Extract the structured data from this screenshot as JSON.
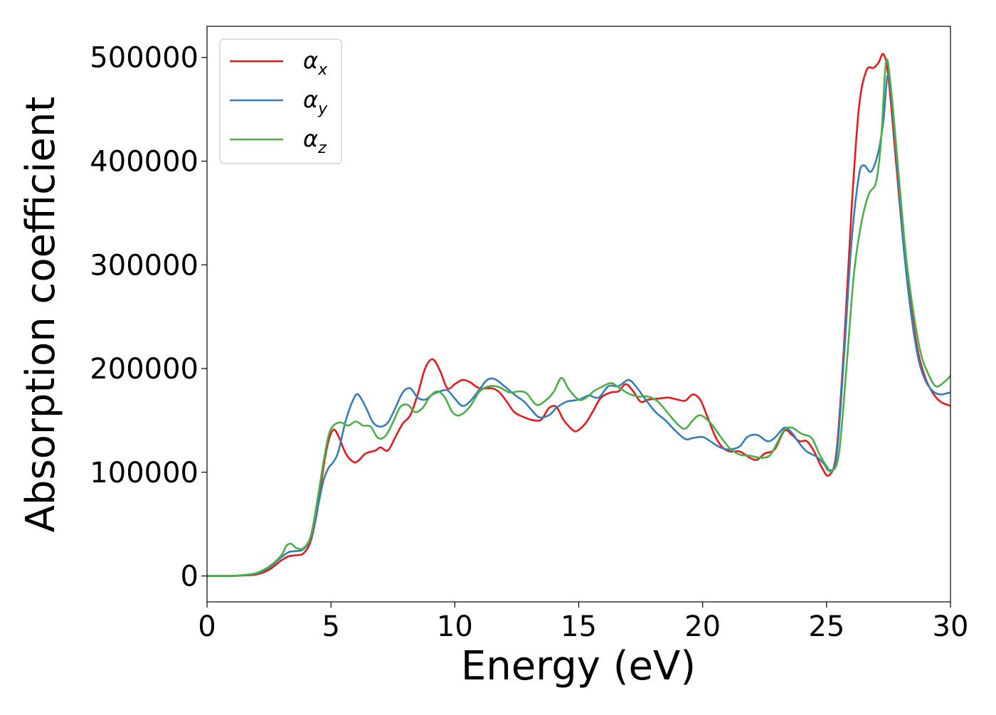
{
  "chart_data": {
    "type": "line",
    "title": "",
    "xlabel": "Energy (eV)",
    "ylabel": "Absorption coefficient",
    "xlim": [
      0,
      30
    ],
    "ylim": [
      -25000,
      530000
    ],
    "xticks": [
      0,
      5,
      10,
      15,
      20,
      25,
      30
    ],
    "xtick_labels": [
      "0",
      "5",
      "10",
      "15",
      "20",
      "25",
      "30"
    ],
    "yticks": [
      0,
      100000,
      200000,
      300000,
      400000,
      500000
    ],
    "ytick_labels": [
      "0",
      "100000",
      "200000",
      "300000",
      "400000",
      "500000"
    ],
    "grid": false,
    "legend": {
      "placement": "top-left"
    },
    "series": [
      {
        "name": "α",
        "subscript": "x",
        "color": "#e41a1c",
        "points": [
          [
            0,
            0
          ],
          [
            1,
            0
          ],
          [
            1.5,
            500
          ],
          [
            2,
            1500
          ],
          [
            2.5,
            6000
          ],
          [
            3,
            15000
          ],
          [
            3.3,
            19000
          ],
          [
            3.6,
            20000
          ],
          [
            3.9,
            22000
          ],
          [
            4.2,
            35000
          ],
          [
            4.5,
            70000
          ],
          [
            4.7,
            105000
          ],
          [
            4.9,
            130000
          ],
          [
            5.1,
            141000
          ],
          [
            5.3,
            135000
          ],
          [
            5.6,
            118000
          ],
          [
            5.9,
            110000
          ],
          [
            6.1,
            111000
          ],
          [
            6.4,
            118000
          ],
          [
            6.8,
            121000
          ],
          [
            7.0,
            124000
          ],
          [
            7.3,
            121000
          ],
          [
            7.6,
            134000
          ],
          [
            7.9,
            147000
          ],
          [
            8.2,
            155000
          ],
          [
            8.5,
            175000
          ],
          [
            8.8,
            200000
          ],
          [
            9.1,
            209000
          ],
          [
            9.4,
            198000
          ],
          [
            9.7,
            181000
          ],
          [
            10.0,
            185000
          ],
          [
            10.3,
            189000
          ],
          [
            10.6,
            187000
          ],
          [
            11.0,
            181000
          ],
          [
            11.5,
            181000
          ],
          [
            11.8,
            177000
          ],
          [
            12.1,
            168000
          ],
          [
            12.4,
            158000
          ],
          [
            12.8,
            153000
          ],
          [
            13.2,
            150000
          ],
          [
            13.5,
            151000
          ],
          [
            13.8,
            162000
          ],
          [
            14.1,
            163000
          ],
          [
            14.4,
            150000
          ],
          [
            14.8,
            140000
          ],
          [
            15.0,
            141000
          ],
          [
            15.3,
            148000
          ],
          [
            15.6,
            160000
          ],
          [
            15.9,
            172000
          ],
          [
            16.3,
            177000
          ],
          [
            16.6,
            178000
          ],
          [
            16.9,
            185000
          ],
          [
            17.2,
            178000
          ],
          [
            17.5,
            168000
          ],
          [
            17.8,
            170000
          ],
          [
            18.2,
            171000
          ],
          [
            18.6,
            172000
          ],
          [
            19.0,
            170000
          ],
          [
            19.3,
            169000
          ],
          [
            19.6,
            175000
          ],
          [
            19.9,
            170000
          ],
          [
            20.2,
            153000
          ],
          [
            20.5,
            135000
          ],
          [
            20.8,
            124000
          ],
          [
            21.1,
            120000
          ],
          [
            21.5,
            120000
          ],
          [
            21.9,
            114000
          ],
          [
            22.2,
            112000
          ],
          [
            22.5,
            118000
          ],
          [
            22.9,
            122000
          ],
          [
            23.3,
            140000
          ],
          [
            23.6,
            136000
          ],
          [
            23.9,
            130000
          ],
          [
            24.2,
            130000
          ],
          [
            24.5,
            120000
          ],
          [
            24.8,
            105000
          ],
          [
            25.1,
            97000
          ],
          [
            25.4,
            120000
          ],
          [
            25.7,
            220000
          ],
          [
            26.0,
            350000
          ],
          [
            26.3,
            450000
          ],
          [
            26.6,
            487000
          ],
          [
            26.9,
            490000
          ],
          [
            27.1,
            495000
          ],
          [
            27.3,
            503000
          ],
          [
            27.5,
            480000
          ],
          [
            27.8,
            400000
          ],
          [
            28.1,
            320000
          ],
          [
            28.4,
            260000
          ],
          [
            28.7,
            215000
          ],
          [
            29.0,
            190000
          ],
          [
            29.3,
            176000
          ],
          [
            29.6,
            168000
          ],
          [
            30,
            164000
          ]
        ]
      },
      {
        "name": "α",
        "subscript": "y",
        "color": "#377eb8",
        "points": [
          [
            0,
            0
          ],
          [
            1,
            0
          ],
          [
            1.5,
            800
          ],
          [
            2,
            2500
          ],
          [
            2.5,
            8000
          ],
          [
            3,
            18000
          ],
          [
            3.3,
            23000
          ],
          [
            3.6,
            24000
          ],
          [
            3.9,
            26000
          ],
          [
            4.2,
            38000
          ],
          [
            4.5,
            70000
          ],
          [
            4.7,
            92000
          ],
          [
            4.9,
            104000
          ],
          [
            5.1,
            110000
          ],
          [
            5.3,
            120000
          ],
          [
            5.6,
            150000
          ],
          [
            5.9,
            170000
          ],
          [
            6.1,
            175000
          ],
          [
            6.4,
            163000
          ],
          [
            6.7,
            148000
          ],
          [
            7.0,
            144000
          ],
          [
            7.3,
            148000
          ],
          [
            7.6,
            162000
          ],
          [
            7.9,
            177000
          ],
          [
            8.2,
            181000
          ],
          [
            8.5,
            172000
          ],
          [
            8.8,
            170000
          ],
          [
            9.1,
            175000
          ],
          [
            9.4,
            178000
          ],
          [
            9.7,
            179000
          ],
          [
            10.0,
            171000
          ],
          [
            10.3,
            164000
          ],
          [
            10.6,
            168000
          ],
          [
            11.0,
            180000
          ],
          [
            11.3,
            189000
          ],
          [
            11.6,
            190000
          ],
          [
            12.0,
            183000
          ],
          [
            12.4,
            175000
          ],
          [
            12.8,
            168000
          ],
          [
            13.1,
            160000
          ],
          [
            13.4,
            153000
          ],
          [
            13.8,
            155000
          ],
          [
            14.1,
            162000
          ],
          [
            14.5,
            168000
          ],
          [
            15.0,
            170000
          ],
          [
            15.4,
            174000
          ],
          [
            15.8,
            172000
          ],
          [
            16.2,
            183000
          ],
          [
            16.6,
            183000
          ],
          [
            17.0,
            189000
          ],
          [
            17.3,
            183000
          ],
          [
            17.7,
            170000
          ],
          [
            18.1,
            158000
          ],
          [
            18.5,
            150000
          ],
          [
            18.9,
            140000
          ],
          [
            19.3,
            132000
          ],
          [
            19.6,
            133000
          ],
          [
            20.0,
            134000
          ],
          [
            20.3,
            130000
          ],
          [
            20.7,
            124000
          ],
          [
            21.1,
            122000
          ],
          [
            21.5,
            125000
          ],
          [
            21.8,
            134000
          ],
          [
            22.2,
            136000
          ],
          [
            22.6,
            130000
          ],
          [
            22.9,
            133000
          ],
          [
            23.3,
            143000
          ],
          [
            23.6,
            138000
          ],
          [
            23.9,
            128000
          ],
          [
            24.2,
            120000
          ],
          [
            24.6,
            115000
          ],
          [
            24.9,
            108000
          ],
          [
            25.1,
            102000
          ],
          [
            25.4,
            115000
          ],
          [
            25.7,
            210000
          ],
          [
            26.0,
            320000
          ],
          [
            26.3,
            385000
          ],
          [
            26.5,
            396000
          ],
          [
            26.8,
            390000
          ],
          [
            27.1,
            410000
          ],
          [
            27.3,
            440000
          ],
          [
            27.5,
            483000
          ],
          [
            27.8,
            410000
          ],
          [
            28.1,
            320000
          ],
          [
            28.4,
            255000
          ],
          [
            28.7,
            210000
          ],
          [
            29.0,
            188000
          ],
          [
            29.3,
            178000
          ],
          [
            29.6,
            175000
          ],
          [
            30,
            177000
          ]
        ]
      },
      {
        "name": "α",
        "subscript": "z",
        "color": "#4daf4a",
        "points": [
          [
            0,
            0
          ],
          [
            1,
            0
          ],
          [
            1.5,
            1000
          ],
          [
            2,
            3000
          ],
          [
            2.5,
            9000
          ],
          [
            3,
            20000
          ],
          [
            3.2,
            29000
          ],
          [
            3.4,
            31000
          ],
          [
            3.6,
            27000
          ],
          [
            3.9,
            27000
          ],
          [
            4.2,
            40000
          ],
          [
            4.5,
            80000
          ],
          [
            4.7,
            110000
          ],
          [
            4.9,
            135000
          ],
          [
            5.1,
            145000
          ],
          [
            5.4,
            148000
          ],
          [
            5.7,
            145000
          ],
          [
            6.0,
            149000
          ],
          [
            6.3,
            145000
          ],
          [
            6.6,
            144000
          ],
          [
            6.9,
            133000
          ],
          [
            7.2,
            135000
          ],
          [
            7.5,
            148000
          ],
          [
            7.8,
            163000
          ],
          [
            8.1,
            165000
          ],
          [
            8.4,
            158000
          ],
          [
            8.7,
            162000
          ],
          [
            9.0,
            173000
          ],
          [
            9.3,
            178000
          ],
          [
            9.6,
            172000
          ],
          [
            9.9,
            158000
          ],
          [
            10.2,
            155000
          ],
          [
            10.6,
            163000
          ],
          [
            11.0,
            178000
          ],
          [
            11.4,
            183000
          ],
          [
            11.8,
            182000
          ],
          [
            12.2,
            177000
          ],
          [
            12.6,
            178000
          ],
          [
            12.9,
            176000
          ],
          [
            13.3,
            165000
          ],
          [
            13.7,
            170000
          ],
          [
            14.0,
            178000
          ],
          [
            14.3,
            191000
          ],
          [
            14.6,
            180000
          ],
          [
            15.0,
            170000
          ],
          [
            15.3,
            172000
          ],
          [
            15.6,
            178000
          ],
          [
            15.9,
            182000
          ],
          [
            16.3,
            186000
          ],
          [
            16.6,
            182000
          ],
          [
            17.0,
            176000
          ],
          [
            17.4,
            173000
          ],
          [
            17.8,
            173000
          ],
          [
            18.2,
            168000
          ],
          [
            18.6,
            157000
          ],
          [
            19.0,
            146000
          ],
          [
            19.3,
            142000
          ],
          [
            19.6,
            150000
          ],
          [
            19.9,
            155000
          ],
          [
            20.3,
            148000
          ],
          [
            20.7,
            135000
          ],
          [
            21.1,
            123000
          ],
          [
            21.5,
            117000
          ],
          [
            21.9,
            116000
          ],
          [
            22.3,
            114000
          ],
          [
            22.7,
            116000
          ],
          [
            23.0,
            128000
          ],
          [
            23.3,
            141000
          ],
          [
            23.6,
            143000
          ],
          [
            24.0,
            137000
          ],
          [
            24.4,
            133000
          ],
          [
            24.7,
            118000
          ],
          [
            25.0,
            106000
          ],
          [
            25.2,
            101000
          ],
          [
            25.5,
            118000
          ],
          [
            25.8,
            200000
          ],
          [
            26.1,
            290000
          ],
          [
            26.4,
            340000
          ],
          [
            26.7,
            368000
          ],
          [
            27.0,
            380000
          ],
          [
            27.2,
            420000
          ],
          [
            27.4,
            496000
          ],
          [
            27.6,
            470000
          ],
          [
            27.9,
            390000
          ],
          [
            28.2,
            310000
          ],
          [
            28.5,
            255000
          ],
          [
            28.8,
            215000
          ],
          [
            29.1,
            195000
          ],
          [
            29.4,
            183000
          ],
          [
            29.7,
            186000
          ],
          [
            30,
            193000
          ]
        ]
      }
    ]
  }
}
